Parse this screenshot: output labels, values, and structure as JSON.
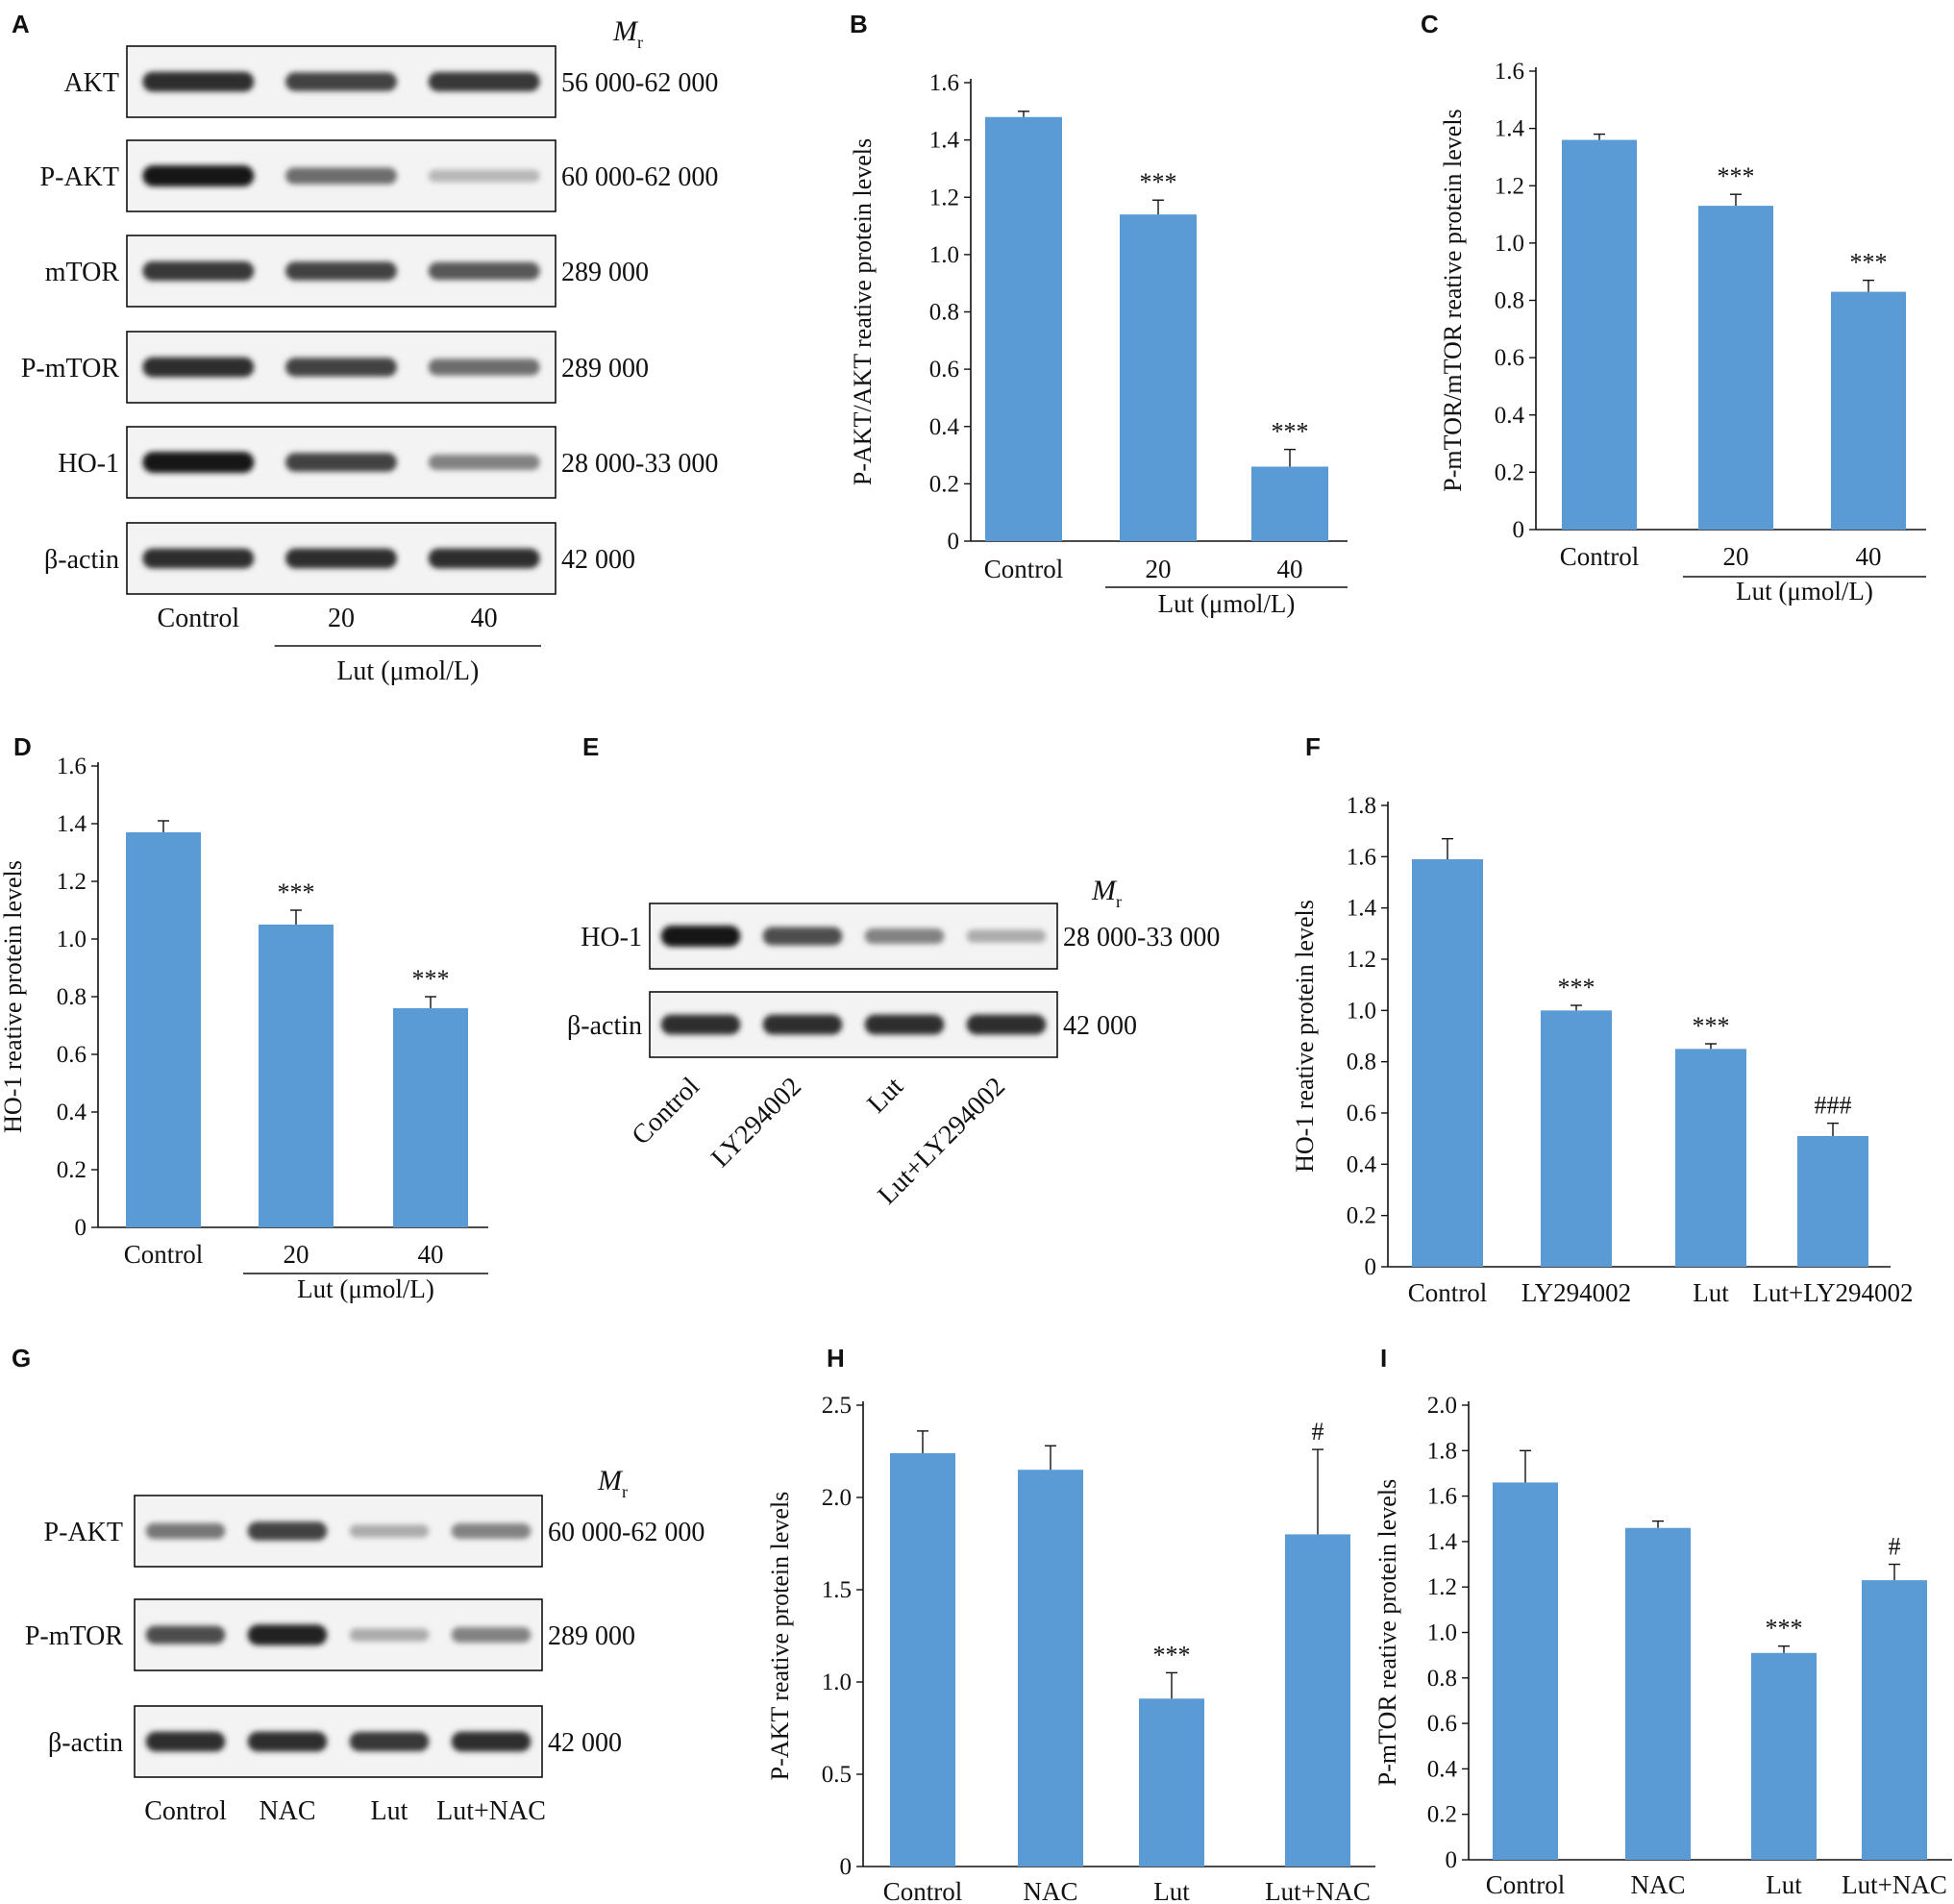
{
  "colors": {
    "bar": "#5b9bd5",
    "axis": "#111111",
    "band": "#1a1a1a"
  },
  "panels": {
    "A": {
      "letter": "A",
      "mr_label": "M",
      "mr_sub": "r",
      "rows": [
        {
          "label": "AKT",
          "mw": "56 000-62 000",
          "intensity": [
            0.9,
            0.8,
            0.85
          ]
        },
        {
          "label": "P-AKT",
          "mw": "60 000-62 000",
          "intensity": [
            1.0,
            0.6,
            0.25
          ]
        },
        {
          "label": "mTOR",
          "mw": "289 000",
          "intensity": [
            0.85,
            0.8,
            0.7
          ]
        },
        {
          "label": "P-mTOR",
          "mw": "289 000",
          "intensity": [
            0.9,
            0.8,
            0.6
          ]
        },
        {
          "label": "HO-1",
          "mw": "28 000-33 000",
          "intensity": [
            1.0,
            0.8,
            0.5
          ]
        },
        {
          "label": "β-actin",
          "mw": "42 000",
          "intensity": [
            0.9,
            0.9,
            0.9
          ]
        }
      ],
      "lanes": [
        "Control",
        "20",
        "40"
      ],
      "group_label": "Lut (μmol/L)"
    },
    "E": {
      "letter": "E",
      "mr_label": "M",
      "mr_sub": "r",
      "rows": [
        {
          "label": "HO-1",
          "mw": "28 000-33 000",
          "intensity": [
            1.0,
            0.75,
            0.5,
            0.3
          ]
        },
        {
          "label": "β-actin",
          "mw": "42 000",
          "intensity": [
            0.9,
            0.9,
            0.9,
            0.9
          ]
        }
      ],
      "lanes": [
        "Control",
        "LY294002",
        "Lut",
        "Lut+LY294002"
      ]
    },
    "G": {
      "letter": "G",
      "mr_label": "M",
      "mr_sub": "r",
      "rows": [
        {
          "label": "P-AKT",
          "mw": "60 000-62 000",
          "intensity": [
            0.55,
            0.8,
            0.3,
            0.5
          ]
        },
        {
          "label": "P-mTOR",
          "mw": "289 000",
          "intensity": [
            0.75,
            0.95,
            0.3,
            0.5
          ]
        },
        {
          "label": "β-actin",
          "mw": "42 000",
          "intensity": [
            0.9,
            0.9,
            0.85,
            0.9
          ]
        }
      ],
      "lanes": [
        "Control",
        "NAC",
        "Lut",
        "Lut+NAC"
      ]
    }
  },
  "chart_data": [
    {
      "id": "B",
      "letter": "B",
      "type": "bar",
      "categories": [
        "Control",
        "20",
        "40"
      ],
      "values": [
        1.48,
        1.14,
        0.26
      ],
      "errors": [
        0.02,
        0.05,
        0.06
      ],
      "annotations": [
        "",
        "***",
        "***"
      ],
      "ylabel": "P-AKT/AKT reative protein levels",
      "ylim": [
        0,
        1.6
      ],
      "yticks": [
        "0",
        "0.2",
        "0.4",
        "0.6",
        "0.8",
        "1.0",
        "1.2",
        "1.4",
        "1.6"
      ],
      "group_label": "Lut (μmol/L)"
    },
    {
      "id": "C",
      "letter": "C",
      "type": "bar",
      "categories": [
        "Control",
        "20",
        "40"
      ],
      "values": [
        1.36,
        1.13,
        0.83
      ],
      "errors": [
        0.02,
        0.04,
        0.04
      ],
      "annotations": [
        "",
        "***",
        "***"
      ],
      "ylabel": "P-mTOR/mTOR reative protein levels",
      "ylim": [
        0,
        1.6
      ],
      "yticks": [
        "0",
        "0.2",
        "0.4",
        "0.6",
        "0.8",
        "1.0",
        "1.2",
        "1.4",
        "1.6"
      ],
      "group_label": "Lut (μmol/L)"
    },
    {
      "id": "D",
      "letter": "D",
      "type": "bar",
      "categories": [
        "Control",
        "20",
        "40"
      ],
      "values": [
        1.37,
        1.05,
        0.76
      ],
      "errors": [
        0.04,
        0.05,
        0.04
      ],
      "annotations": [
        "",
        "***",
        "***"
      ],
      "ylabel": "HO-1 reative protein levels",
      "ylim": [
        0,
        1.6
      ],
      "yticks": [
        "0",
        "0.2",
        "0.4",
        "0.6",
        "0.8",
        "1.0",
        "1.2",
        "1.4",
        "1.6"
      ],
      "group_label": "Lut (μmol/L)"
    },
    {
      "id": "F",
      "letter": "F",
      "type": "bar",
      "categories": [
        "Control",
        "LY294002",
        "Lut",
        "Lut+LY294002"
      ],
      "values": [
        1.59,
        1.0,
        0.85,
        0.51
      ],
      "errors": [
        0.08,
        0.02,
        0.02,
        0.05
      ],
      "annotations": [
        "",
        "***",
        "***",
        "###"
      ],
      "ylabel": "HO-1 reative protein levels",
      "ylim": [
        0,
        1.8
      ],
      "yticks": [
        "0",
        "0.2",
        "0.4",
        "0.6",
        "0.8",
        "1.0",
        "1.2",
        "1.4",
        "1.6",
        "1.8"
      ],
      "group_label": ""
    },
    {
      "id": "H",
      "letter": "H",
      "type": "bar",
      "categories": [
        "Control",
        "NAC",
        "Lut",
        "Lut+NAC"
      ],
      "values": [
        2.24,
        2.15,
        0.91,
        1.8
      ],
      "errors": [
        0.12,
        0.13,
        0.14,
        0.46
      ],
      "annotations": [
        "",
        "",
        "***",
        "#"
      ],
      "ylabel": "P-AKT reative protein levels",
      "ylim": [
        0,
        2.5
      ],
      "yticks": [
        "0",
        "0.5",
        "1.0",
        "1.5",
        "2.0",
        "2.5"
      ],
      "group_label": ""
    },
    {
      "id": "I",
      "letter": "I",
      "type": "bar",
      "categories": [
        "Control",
        "NAC",
        "Lut",
        "Lut+NAC"
      ],
      "values": [
        1.66,
        1.46,
        0.91,
        1.23
      ],
      "errors": [
        0.14,
        0.03,
        0.03,
        0.07
      ],
      "annotations": [
        "",
        "",
        "***",
        "#"
      ],
      "ylabel": "P-mTOR reative protein levels",
      "ylim": [
        0,
        2.0
      ],
      "yticks": [
        "0",
        "0.2",
        "0.4",
        "0.6",
        "0.8",
        "1.0",
        "1.2",
        "1.4",
        "1.6",
        "1.8",
        "2.0"
      ],
      "group_label": ""
    }
  ]
}
